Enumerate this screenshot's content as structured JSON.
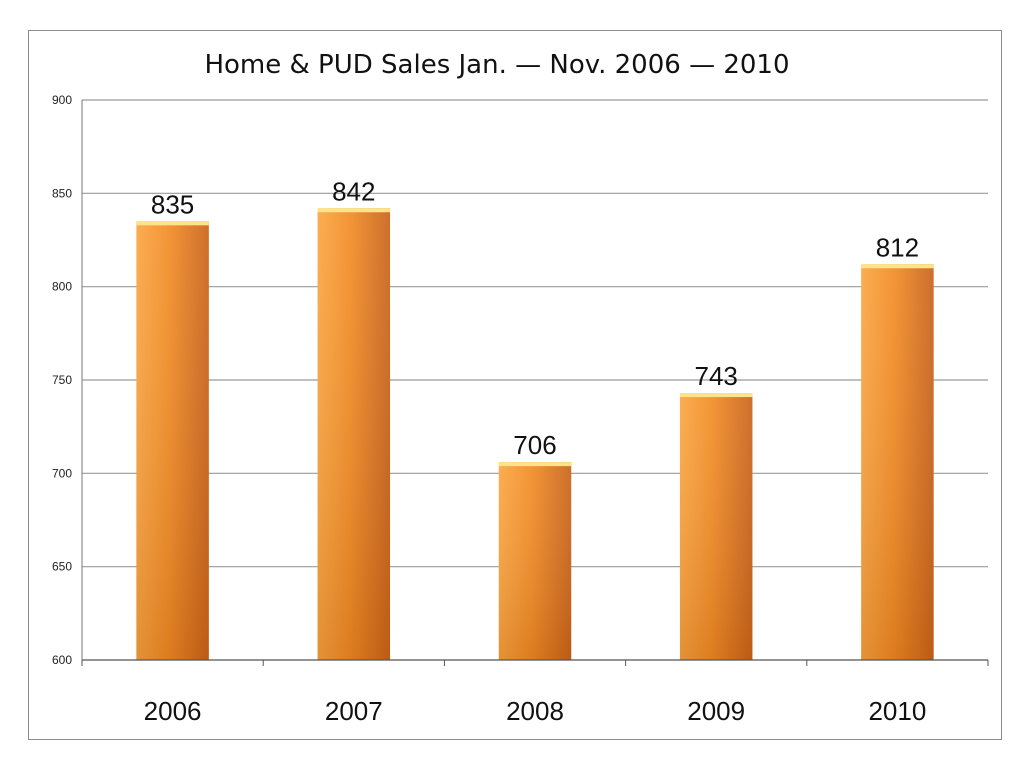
{
  "chart_data": {
    "type": "bar",
    "title": "Home & PUD Sales Jan. — Nov. 2006 — 2010",
    "xlabel": "",
    "ylabel": "",
    "categories": [
      "2006",
      "2007",
      "2008",
      "2009",
      "2010"
    ],
    "values": [
      835,
      842,
      706,
      743,
      812
    ],
    "value_labels": [
      "835",
      "842",
      "706",
      "743",
      "812"
    ],
    "ylim": [
      600,
      900
    ],
    "yticks": [
      600,
      650,
      700,
      750,
      800,
      850,
      900
    ],
    "ytick_labels": [
      "600",
      "650",
      "700",
      "750",
      "800",
      "850",
      "900"
    ],
    "grid": true,
    "legend": "none",
    "colors": {
      "bar_light": "#fba642",
      "bar_mid": "#f28c25",
      "bar_dark": "#c9631a",
      "bar_top": "#fde38a",
      "gridline": "#9a9a9a"
    }
  }
}
